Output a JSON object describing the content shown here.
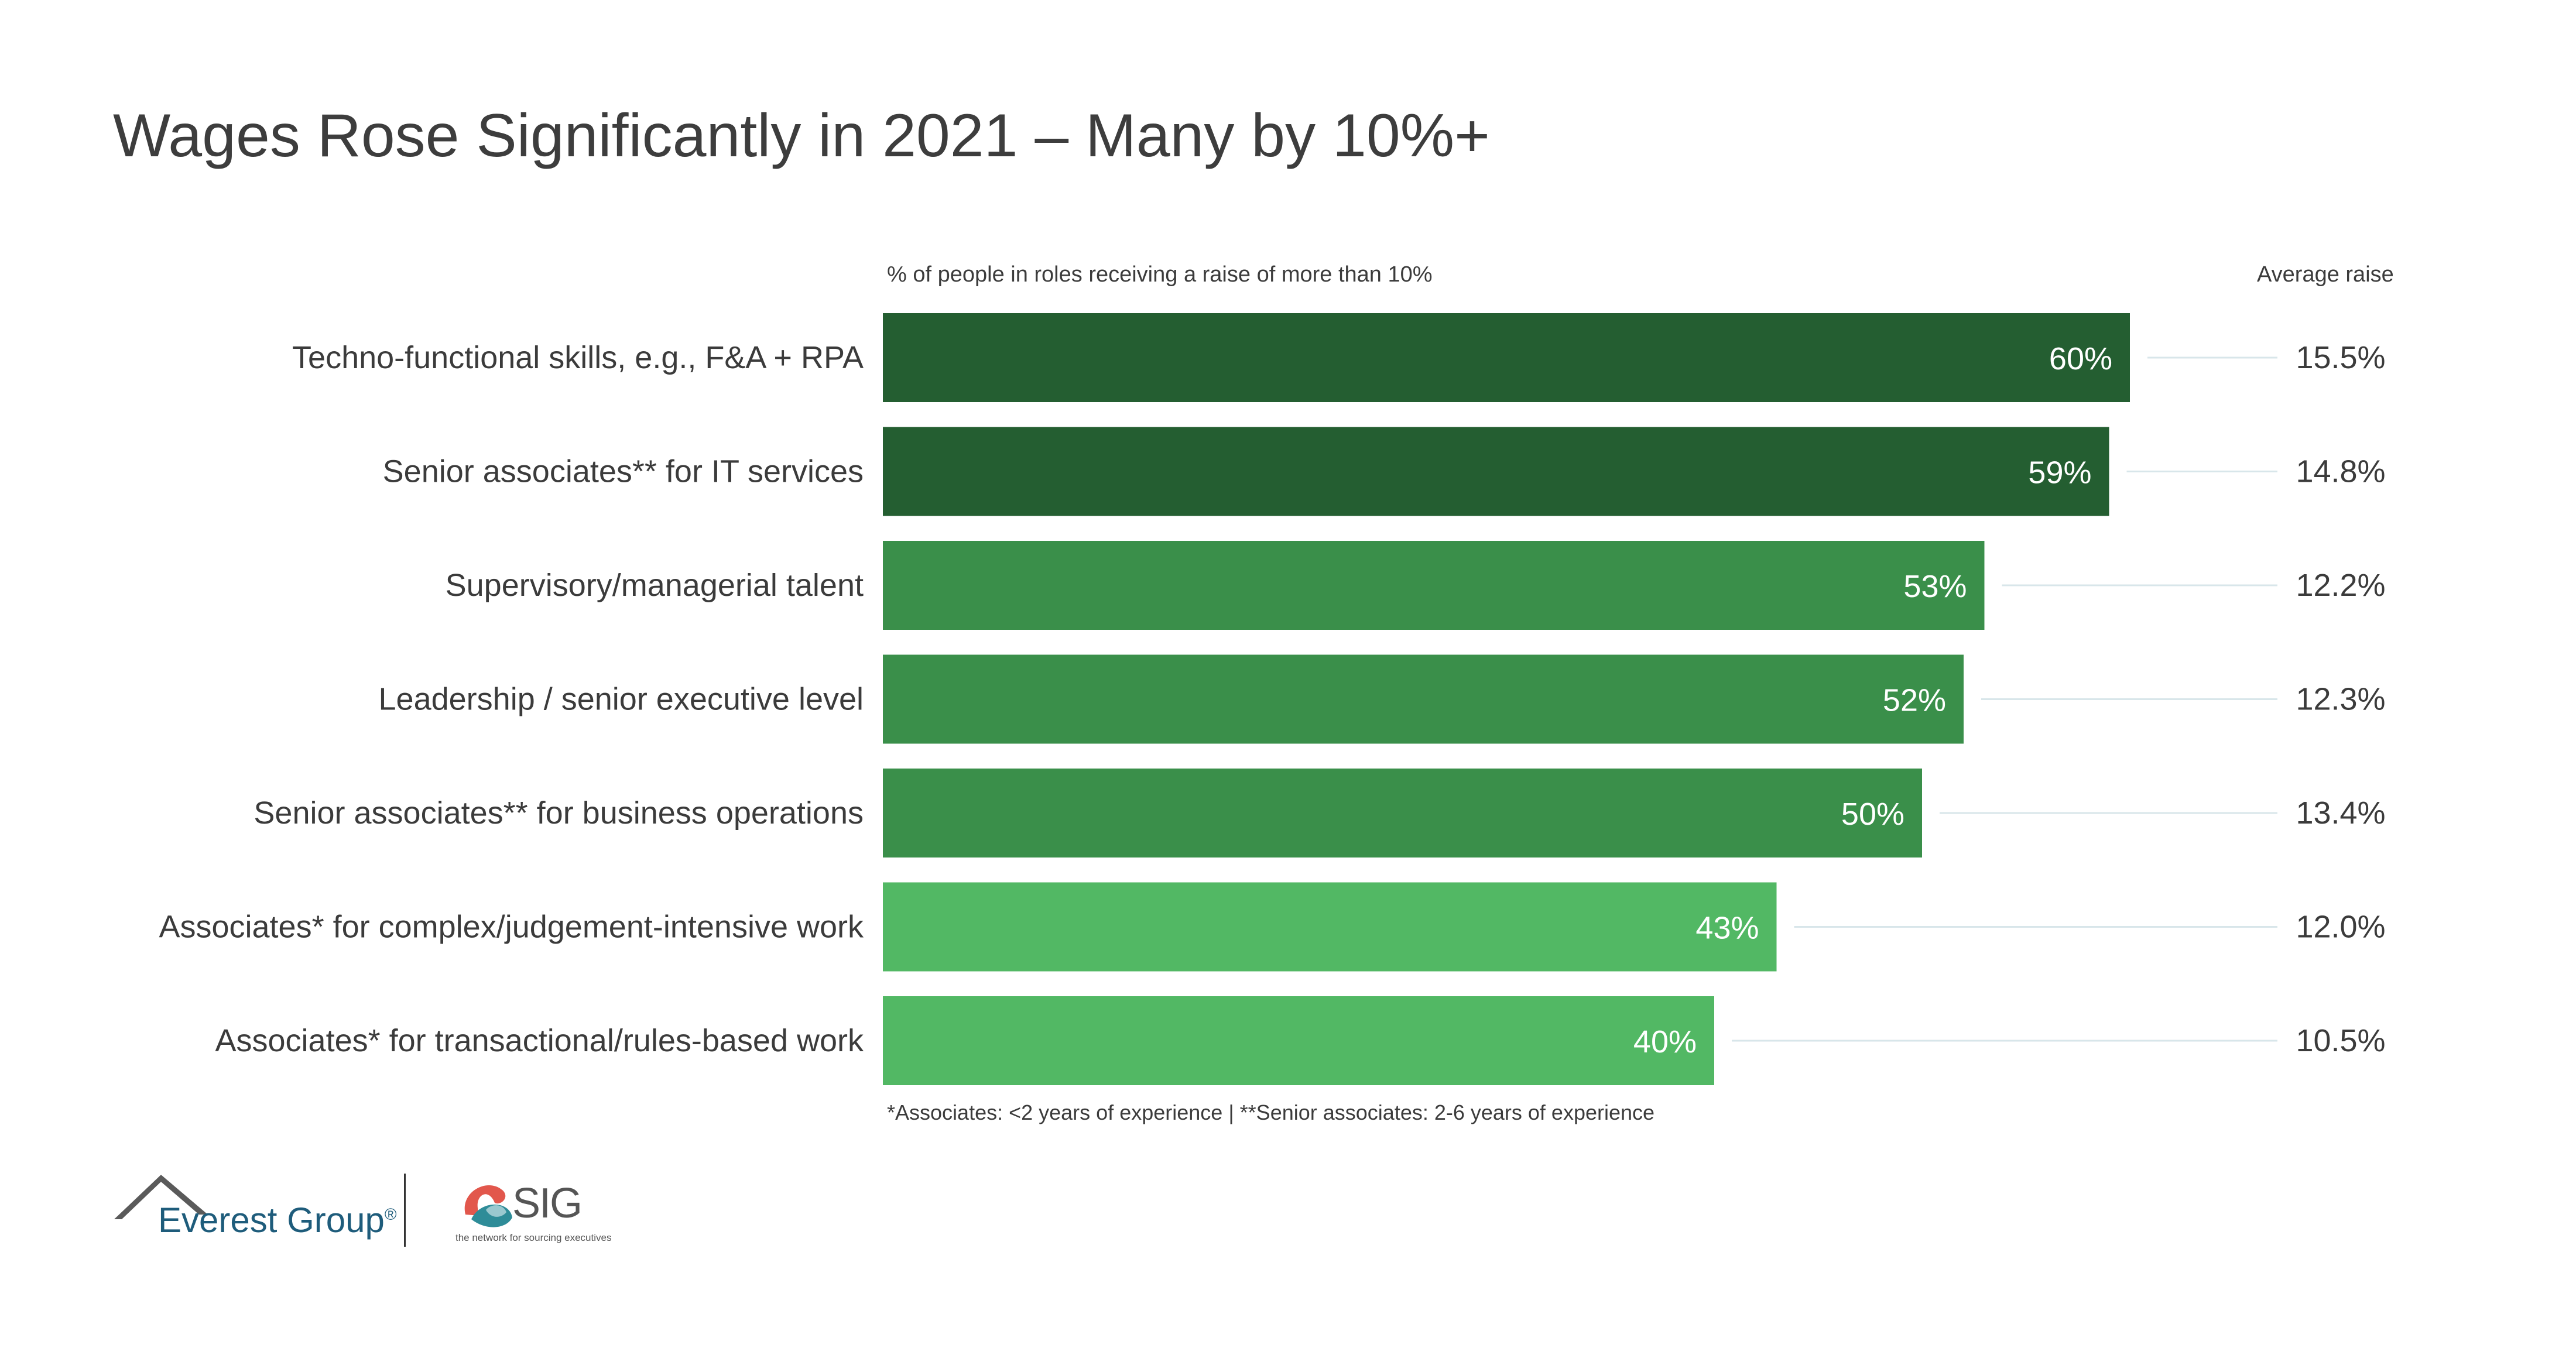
{
  "title": "Wages Rose Significantly in 2021 – Many by 10%+",
  "headers": {
    "left": "% of people in roles receiving a raise of more than 10%",
    "right": "Average raise"
  },
  "footnote": "*Associates: <2 years of experience | **Senior associates: 2-6 years of experience",
  "logos": {
    "everest": "Everest Group",
    "everest_mark": "®",
    "sig": "SIG",
    "sig_tagline": "the network for sourcing executives"
  },
  "colors": {
    "dark": "#245e31",
    "medium": "#3a8f4a",
    "light": "#52b864",
    "connector": "#d8e6ea"
  },
  "chart_data": {
    "type": "bar",
    "orientation": "horizontal",
    "categories": [
      "Techno-functional skills, e.g., F&A + RPA",
      "Senior associates** for IT services",
      "Supervisory/managerial talent",
      "Leadership / senior executive level",
      "Senior associates** for business operations",
      "Associates* for complex/judgement-intensive work",
      "Associates* for transactional/rules-based work"
    ],
    "values": [
      60,
      59,
      53,
      52,
      50,
      43,
      40
    ],
    "value_labels": [
      "60%",
      "59%",
      "53%",
      "52%",
      "50%",
      "43%",
      "40%"
    ],
    "shades": [
      "dark",
      "dark",
      "medium",
      "medium",
      "medium",
      "light",
      "light"
    ],
    "average_raise": [
      "15.5%",
      "14.8%",
      "12.2%",
      "12.3%",
      "13.4%",
      "12.0%",
      "10.5%"
    ],
    "xlim": [
      0,
      60
    ],
    "grid": false
  }
}
